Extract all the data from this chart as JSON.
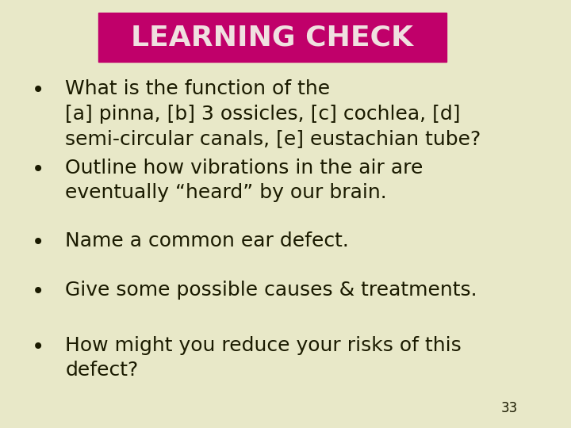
{
  "background_color": "#e8e8c8",
  "title_text": "LEARNING CHECK",
  "title_bg_color": "#c0006a",
  "title_text_color": "#f0e0e0",
  "bullet_points": [
    "What is the function of the\n[a] pinna, [b] 3 ossicles, [c] cochlea, [d]\nsemi-circular canals, [e] eustachian tube?",
    "Outline how vibrations in the air are\neventually “heard” by our brain.",
    "Name a common ear defect.",
    "Give some possible causes & treatments.",
    "How might you reduce your risks of this\ndefect?"
  ],
  "text_color": "#1a1a00",
  "font_size": 18,
  "title_font_size": 26,
  "page_number": "33"
}
